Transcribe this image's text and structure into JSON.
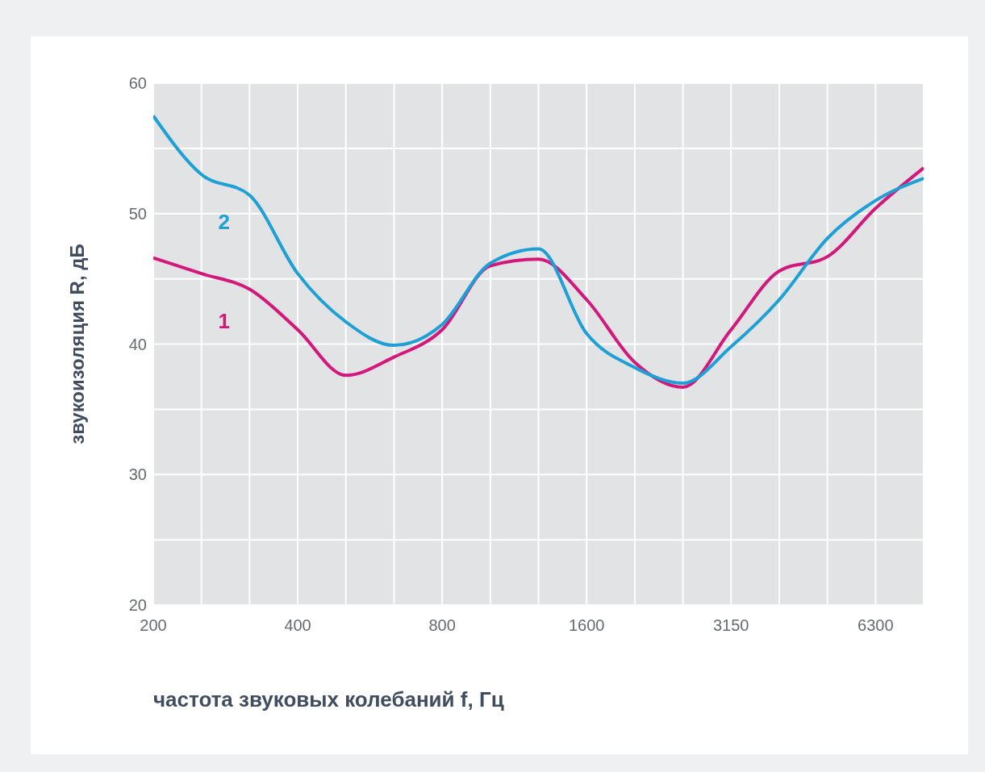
{
  "chart_data": {
    "type": "line",
    "xlabel": "частота звуковых колебаний f, Гц",
    "ylabel": "звукоизоляция R, дБ",
    "categories": [
      "200",
      null,
      null,
      "400",
      null,
      null,
      "800",
      null,
      null,
      "1600",
      null,
      null,
      "3150",
      null,
      null,
      "6300",
      null
    ],
    "series": [
      {
        "name": "1",
        "color": "#d3177b",
        "values": [
          46.6,
          45.4,
          44.2,
          41.1,
          37.6,
          39.0,
          41.1,
          46.0,
          46.5,
          43.4,
          38.6,
          36.7,
          41.1,
          45.6,
          46.7,
          50.4,
          53.5
        ]
      },
      {
        "name": "2",
        "color": "#1e9fd6",
        "values": [
          57.5,
          53.0,
          51.4,
          45.4,
          41.7,
          39.9,
          41.5,
          46.2,
          47.3,
          40.8,
          38.2,
          37.0,
          39.8,
          43.4,
          48.1,
          51.0,
          52.7
        ]
      }
    ],
    "ylim": [
      20,
      60
    ],
    "yticks": [
      20,
      {
        "value": 25,
        "label": null
      },
      30,
      {
        "value": 35,
        "label": null
      },
      40,
      {
        "value": 45,
        "label": null
      },
      50,
      {
        "value": 55,
        "label": null
      },
      60
    ],
    "grid": true,
    "marker": "none",
    "line_style": "solid"
  }
}
